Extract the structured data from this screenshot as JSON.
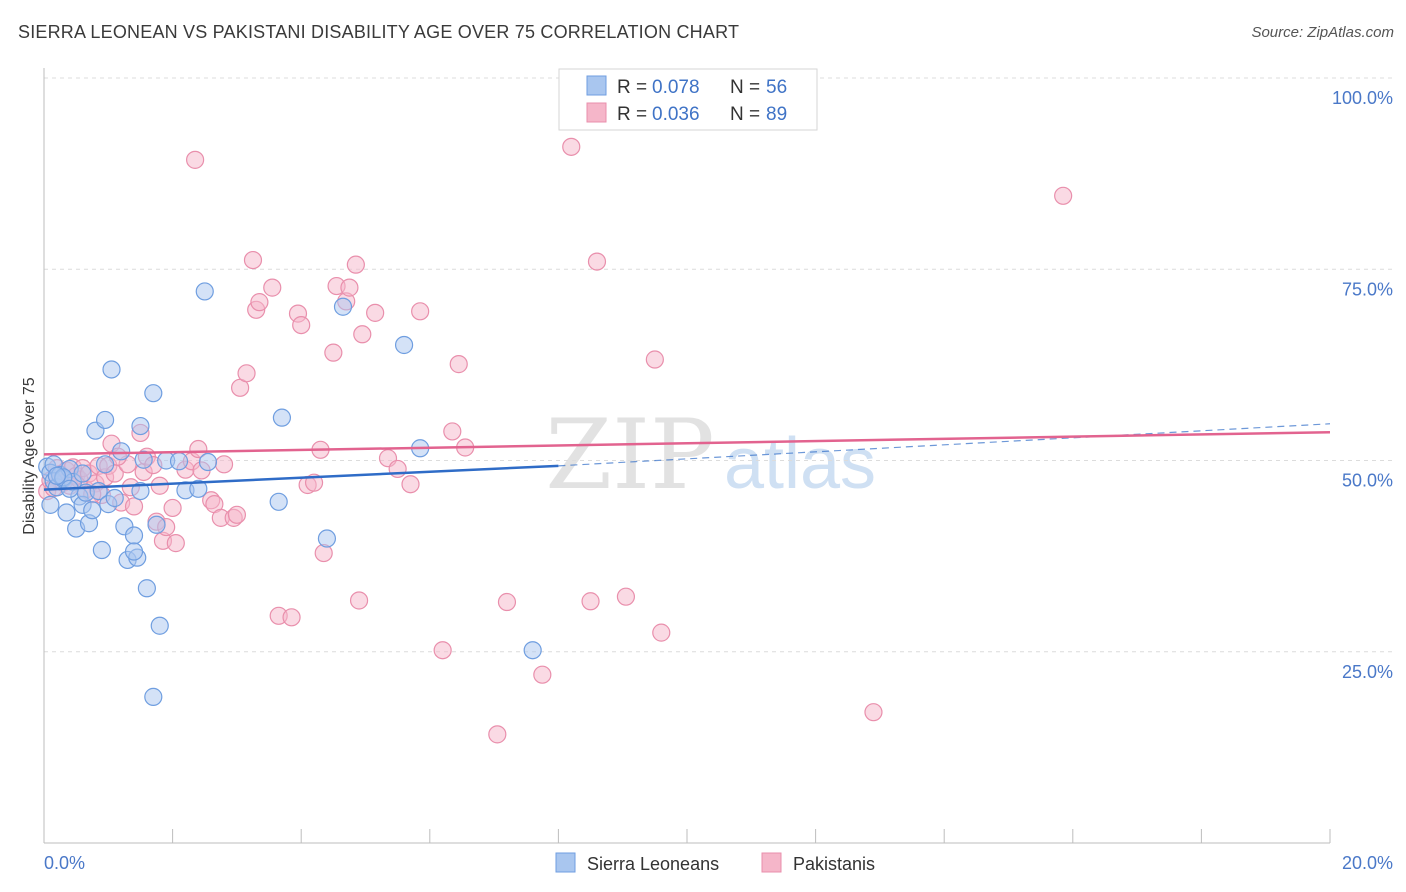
{
  "header": {
    "title": "SIERRA LEONEAN VS PAKISTANI DISABILITY AGE OVER 75 CORRELATION CHART",
    "source": "Source: ZipAtlas.com"
  },
  "watermark": {
    "zip": "ZIP",
    "atlas": "atlas"
  },
  "legend_box": {
    "rows": [
      {
        "r_label": "R =",
        "r_value": "0.078",
        "n_label": "N =",
        "n_value": "56"
      },
      {
        "r_label": "R =",
        "r_value": "0.036",
        "n_label": "N =",
        "n_value": "89"
      }
    ]
  },
  "colors": {
    "blue_fill": "#a9c6ef",
    "blue_stroke": "#6f9ee0",
    "blue_line": "#2f6cc7",
    "pink_fill": "#f5b6c9",
    "pink_stroke": "#e98fac",
    "pink_line": "#e2638f",
    "tick_text": "#4a78c8",
    "grid": "#dcdcdc"
  },
  "chart_data": {
    "type": "scatter",
    "title": "SIERRA LEONEAN VS PAKISTANI DISABILITY AGE OVER 75 CORRELATION CHART",
    "xlabel": "",
    "ylabel": "Disability Age Over 75",
    "xlim": [
      0,
      20
    ],
    "ylim": [
      0,
      105
    ],
    "x_tick_labels": [
      "0.0%",
      "20.0%"
    ],
    "y_ticks": [
      25,
      50,
      75,
      100
    ],
    "y_tick_labels": [
      "25.0%",
      "50.0%",
      "75.0%",
      "100.0%"
    ],
    "grid": true,
    "legend": [
      "Sierra Leoneans",
      "Pakistanis"
    ],
    "series": [
      {
        "name": "Sierra Leoneans",
        "R": 0.078,
        "N": 56,
        "trend": {
          "x0": 0,
          "y0": 46.2,
          "x1": 8.0,
          "y1": 49.3,
          "dashed_to_x": 20,
          "dashed_to_y": 54.8
        },
        "points": [
          [
            0.05,
            49.2
          ],
          [
            0.1,
            48.4
          ],
          [
            0.1,
            44.2
          ],
          [
            0.15,
            47.3
          ],
          [
            0.15,
            49.5
          ],
          [
            0.2,
            46.5
          ],
          [
            0.25,
            48.1
          ],
          [
            0.3,
            47.6
          ],
          [
            0.35,
            43.2
          ],
          [
            0.4,
            48.9
          ],
          [
            0.45,
            47.2
          ],
          [
            0.5,
            41.1
          ],
          [
            0.55,
            45.3
          ],
          [
            0.6,
            44.2
          ],
          [
            0.65,
            45.8
          ],
          [
            0.7,
            41.8
          ],
          [
            0.75,
            43.5
          ],
          [
            0.8,
            53.9
          ],
          [
            0.85,
            46.0
          ],
          [
            0.9,
            38.3
          ],
          [
            0.95,
            49.5
          ],
          [
            1.0,
            44.3
          ],
          [
            1.05,
            61.9
          ],
          [
            1.1,
            45.1
          ],
          [
            1.2,
            51.2
          ],
          [
            1.25,
            41.4
          ],
          [
            1.3,
            37.0
          ],
          [
            1.4,
            40.2
          ],
          [
            1.45,
            37.3
          ],
          [
            1.5,
            46.0
          ],
          [
            1.55,
            50.1
          ],
          [
            1.6,
            33.3
          ],
          [
            1.7,
            58.8
          ],
          [
            1.75,
            41.6
          ],
          [
            1.8,
            28.4
          ],
          [
            1.9,
            50.0
          ],
          [
            2.1,
            49.9
          ],
          [
            2.2,
            46.1
          ],
          [
            2.4,
            46.3
          ],
          [
            2.55,
            49.8
          ],
          [
            2.5,
            72.1
          ],
          [
            3.7,
            55.6
          ],
          [
            3.65,
            44.6
          ],
          [
            4.4,
            39.8
          ],
          [
            4.65,
            70.1
          ],
          [
            5.6,
            65.1
          ],
          [
            5.85,
            51.6
          ],
          [
            7.6,
            25.2
          ],
          [
            1.7,
            19.1
          ],
          [
            0.3,
            47.8
          ],
          [
            0.6,
            48.3
          ],
          [
            0.4,
            46.3
          ],
          [
            1.4,
            38.1
          ],
          [
            0.95,
            55.3
          ],
          [
            1.5,
            54.5
          ],
          [
            0.2,
            48.0
          ]
        ]
      },
      {
        "name": "Pakistanis",
        "R": 0.036,
        "N": 89,
        "trend": {
          "x0": 0,
          "y0": 50.8,
          "x1": 20,
          "y1": 53.7
        },
        "points": [
          [
            0.05,
            46.0
          ],
          [
            0.1,
            47.4
          ],
          [
            0.15,
            46.4
          ],
          [
            0.2,
            49.0
          ],
          [
            0.25,
            48.2
          ],
          [
            0.3,
            47.1
          ],
          [
            0.35,
            48.7
          ],
          [
            0.4,
            46.7
          ],
          [
            0.45,
            49.1
          ],
          [
            0.5,
            48.0
          ],
          [
            0.55,
            47.5
          ],
          [
            0.6,
            49.0
          ],
          [
            0.65,
            46.2
          ],
          [
            0.7,
            48.3
          ],
          [
            0.8,
            47.0
          ],
          [
            0.85,
            49.3
          ],
          [
            0.9,
            45.5
          ],
          [
            0.95,
            47.8
          ],
          [
            1.0,
            49.3
          ],
          [
            1.05,
            52.2
          ],
          [
            1.1,
            48.3
          ],
          [
            1.2,
            44.5
          ],
          [
            1.3,
            49.5
          ],
          [
            1.35,
            46.5
          ],
          [
            1.4,
            44.0
          ],
          [
            1.5,
            53.6
          ],
          [
            1.55,
            48.5
          ],
          [
            1.6,
            50.5
          ],
          [
            1.7,
            49.4
          ],
          [
            1.75,
            42.0
          ],
          [
            1.8,
            46.7
          ],
          [
            1.85,
            39.5
          ],
          [
            1.9,
            41.3
          ],
          [
            2.0,
            43.8
          ],
          [
            2.05,
            39.2
          ],
          [
            2.2,
            48.8
          ],
          [
            2.3,
            49.9
          ],
          [
            2.4,
            51.5
          ],
          [
            2.45,
            48.7
          ],
          [
            2.6,
            44.8
          ],
          [
            2.65,
            44.3
          ],
          [
            2.75,
            42.5
          ],
          [
            2.8,
            49.5
          ],
          [
            2.95,
            42.5
          ],
          [
            3.0,
            42.9
          ],
          [
            3.05,
            59.5
          ],
          [
            3.15,
            61.4
          ],
          [
            3.25,
            76.2
          ],
          [
            3.3,
            69.7
          ],
          [
            3.35,
            70.7
          ],
          [
            3.55,
            72.6
          ],
          [
            3.65,
            29.7
          ],
          [
            3.85,
            29.5
          ],
          [
            3.95,
            69.2
          ],
          [
            4.0,
            67.7
          ],
          [
            4.1,
            46.8
          ],
          [
            4.2,
            47.1
          ],
          [
            4.3,
            51.4
          ],
          [
            4.35,
            37.9
          ],
          [
            4.5,
            64.1
          ],
          [
            4.55,
            72.8
          ],
          [
            4.7,
            70.8
          ],
          [
            4.75,
            72.6
          ],
          [
            4.85,
            75.6
          ],
          [
            4.9,
            31.7
          ],
          [
            4.95,
            66.5
          ],
          [
            5.15,
            69.3
          ],
          [
            5.35,
            50.3
          ],
          [
            5.5,
            48.9
          ],
          [
            5.7,
            46.9
          ],
          [
            5.85,
            69.5
          ],
          [
            6.2,
            25.2
          ],
          [
            6.35,
            53.8
          ],
          [
            6.45,
            62.6
          ],
          [
            6.55,
            51.7
          ],
          [
            7.2,
            31.5
          ],
          [
            7.75,
            22.0
          ],
          [
            7.05,
            14.2
          ],
          [
            8.2,
            91.0
          ],
          [
            8.5,
            31.6
          ],
          [
            8.6,
            76.0
          ],
          [
            9.05,
            32.2
          ],
          [
            9.5,
            63.2
          ],
          [
            9.6,
            27.5
          ],
          [
            12.9,
            17.1
          ],
          [
            15.85,
            84.6
          ],
          [
            2.35,
            89.3
          ],
          [
            1.15,
            50.5
          ],
          [
            0.75,
            45.6
          ]
        ]
      }
    ]
  }
}
